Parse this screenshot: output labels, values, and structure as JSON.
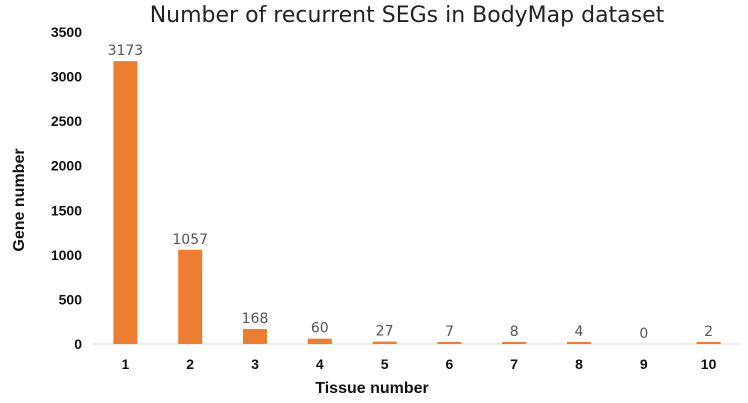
{
  "chart_data": {
    "type": "bar",
    "title": "Number of recurrent SEGs in BodyMap dataset",
    "xlabel": "Tissue number",
    "ylabel": "Gene number",
    "categories": [
      "1",
      "2",
      "3",
      "4",
      "5",
      "6",
      "7",
      "8",
      "9",
      "10"
    ],
    "values": [
      3173,
      1057,
      168,
      60,
      27,
      7,
      8,
      4,
      0,
      2
    ],
    "data_labels": [
      "3173",
      "1057",
      "168",
      "60",
      "27",
      "7",
      "8",
      "4",
      "0",
      "2"
    ],
    "ylim": [
      0,
      3500
    ],
    "yticks": [
      0,
      500,
      1000,
      1500,
      2000,
      2500,
      3000,
      3500
    ],
    "grid": false,
    "legend": "none",
    "bar_color": "#ED7D31",
    "axis_color": "#D9D9D9"
  }
}
